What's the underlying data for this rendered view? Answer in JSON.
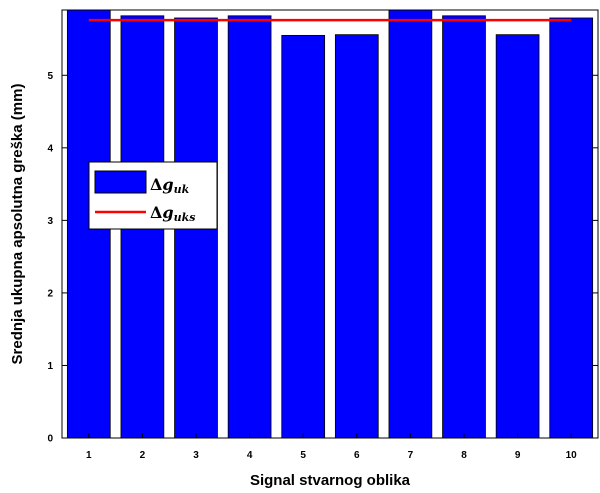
{
  "chart_data": {
    "type": "bar",
    "categories": [
      "1",
      "2",
      "3",
      "4",
      "5",
      "6",
      "7",
      "8",
      "9",
      "10"
    ],
    "series": [
      {
        "name": "Δg_uk",
        "values": [
          5.95,
          5.82,
          5.79,
          5.82,
          5.55,
          5.56,
          5.95,
          5.82,
          5.56,
          5.79
        ]
      }
    ],
    "reference_line": {
      "name": "Δg_uks",
      "value": 5.76
    },
    "title": "",
    "xlabel": "Signal stvarnog oblika",
    "ylabel": "Srednja ukupna apsolutna greška (mm)",
    "ylim": [
      0,
      5.9
    ],
    "yticks": [
      0,
      1,
      2,
      3,
      4,
      5
    ],
    "grid": false,
    "legend_position": "middle-left",
    "legend": [
      {
        "symbol": "Δ",
        "base": "g",
        "sub": "uk"
      },
      {
        "symbol": "Δ",
        "base": "g",
        "sub": "uks"
      }
    ],
    "colors": {
      "bar": "#0000ff",
      "bar_edge": "#000000",
      "line": "#ff0000"
    }
  }
}
